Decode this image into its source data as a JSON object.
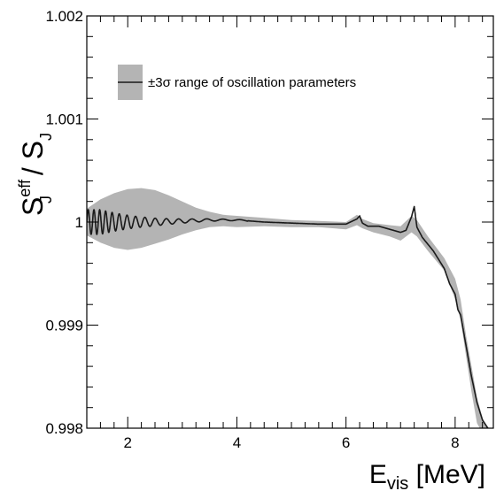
{
  "chart_data": {
    "type": "line",
    "title": "",
    "xlabel": "E_vis [MeV]",
    "xlabel_main": "E",
    "xlabel_sub": "vis",
    "xlabel_unit": " [MeV]",
    "ylabel": "S_J^eff / S_J",
    "ylabel_main": "S",
    "ylabel_sub": "J",
    "ylabel_sup": "eff",
    "ylabel_sep": " / ",
    "ylabel_den_main": "S",
    "ylabel_den_sub": "J",
    "xlim": [
      1.25,
      8.7
    ],
    "ylim": [
      0.998,
      1.002
    ],
    "xticks": [
      2,
      4,
      6,
      8
    ],
    "xtick_labels": [
      "2",
      "4",
      "6",
      "8"
    ],
    "yticks": [
      0.998,
      0.999,
      1.0,
      1.001,
      1.002
    ],
    "ytick_labels": [
      "0.998",
      "0.999",
      "1",
      "1.001",
      "1.002"
    ],
    "grid": false,
    "legend": {
      "position": "top-left",
      "entries": [
        "±3σ range of oscillation parameters"
      ]
    },
    "series": [
      {
        "kind": "band",
        "color": "#b4b4b4",
        "x": [
          1.25,
          1.5,
          1.75,
          2.0,
          2.25,
          2.5,
          2.75,
          3.0,
          3.25,
          3.5,
          3.75,
          4.0,
          4.5,
          5.0,
          5.5,
          6.0,
          6.2,
          6.3,
          6.5,
          6.8,
          7.0,
          7.2,
          7.3,
          7.5,
          7.8,
          8.0,
          8.1,
          8.2,
          8.3,
          8.4,
          8.5,
          8.6,
          8.7
        ],
        "upper": [
          1.00013,
          1.00022,
          1.00028,
          1.00032,
          1.00033,
          1.00031,
          1.00026,
          1.0002,
          1.00014,
          1.0001,
          1.00007,
          1.00006,
          1.00004,
          1.00002,
          1.00001,
          1.0,
          1.00007,
          1.00003,
          0.99999,
          0.99997,
          0.99996,
          1.00006,
          1.00002,
          0.99986,
          0.99965,
          0.99945,
          0.99925,
          0.9989,
          0.9986,
          0.9983,
          0.9981,
          0.998,
          0.99795
        ],
        "lower": [
          0.99987,
          0.9998,
          0.99975,
          0.99973,
          0.99975,
          0.99979,
          0.99983,
          0.99988,
          0.99992,
          0.99995,
          0.99996,
          0.99995,
          0.99996,
          0.99995,
          0.99995,
          0.99993,
          0.99997,
          0.99994,
          0.9999,
          0.99986,
          0.99982,
          0.9999,
          0.99986,
          0.99972,
          0.99953,
          0.99925,
          0.99905,
          0.9987,
          0.99835,
          0.99805,
          0.99795,
          0.9979,
          0.99785
        ]
      },
      {
        "kind": "line",
        "color": "#1a1a1a",
        "x": [
          1.25,
          1.6,
          2.0,
          2.5,
          3.0,
          3.5,
          4.0,
          4.5,
          5.0,
          5.5,
          5.8,
          6.0,
          6.2,
          6.25,
          6.3,
          6.4,
          6.6,
          6.8,
          7.0,
          7.1,
          7.2,
          7.25,
          7.3,
          7.4,
          7.6,
          7.8,
          7.9,
          8.0,
          8.05,
          8.1,
          8.2,
          8.3,
          8.4,
          8.5,
          8.6,
          8.7
        ],
        "y": [
          1.0,
          1.0,
          1.0,
          1.0,
          1.00001,
          1.00002,
          1.00002,
          1.0,
          0.99999,
          0.99998,
          0.99998,
          0.99998,
          1.00003,
          1.00006,
          0.99999,
          0.99996,
          0.99996,
          0.99993,
          0.9999,
          0.99992,
          1.00005,
          1.00015,
          0.99995,
          0.99985,
          0.99972,
          0.99955,
          0.9994,
          0.9993,
          0.99915,
          0.9991,
          0.9988,
          0.9985,
          0.99825,
          0.99808,
          0.998,
          0.99795
        ],
        "oscillation": {
          "center_x": 1.5,
          "period_start": 0.105,
          "period_end": 0.35,
          "amplitude_start": 0.00012,
          "amplitude_end": 5e-06,
          "x_end": 4.2
        }
      }
    ]
  }
}
